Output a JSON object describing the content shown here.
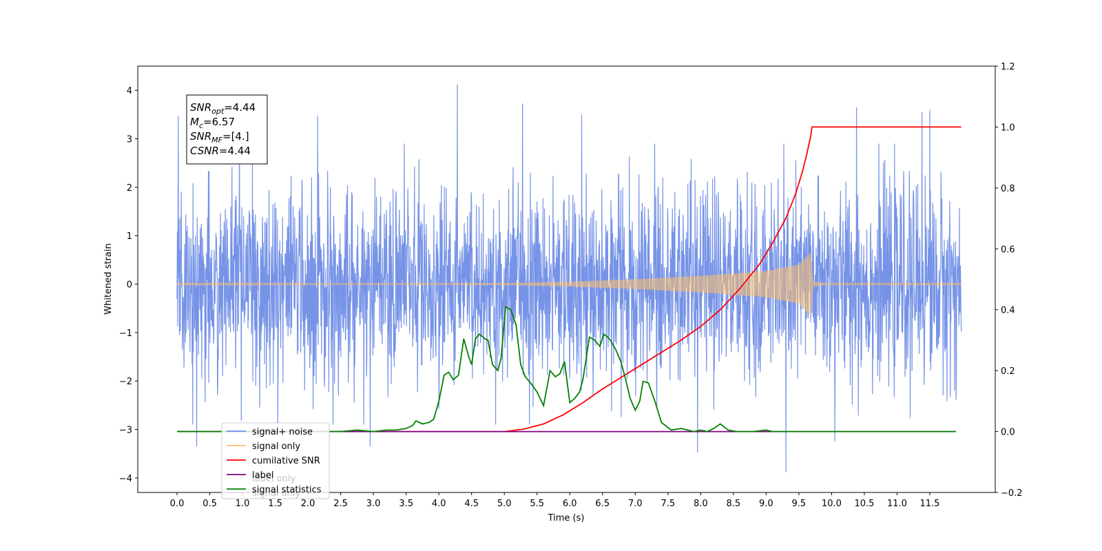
{
  "chart_data": {
    "type": "line",
    "title": "",
    "xlabel": "Time (s)",
    "ylabel": "Whitened strain",
    "xlim": [
      -0.6,
      12.5
    ],
    "xticks": [
      0.0,
      0.5,
      1.0,
      1.5,
      2.0,
      2.5,
      3.0,
      3.5,
      4.0,
      4.5,
      5.0,
      5.5,
      6.0,
      6.5,
      7.0,
      7.5,
      8.0,
      8.5,
      9.0,
      9.5,
      10.0,
      10.5,
      11.0,
      11.5
    ],
    "xtick_labels": [
      "0.0",
      "0.5",
      "1.0",
      "1.5",
      "2.0",
      "2.5",
      "3.0",
      "3.5",
      "4.0",
      "4.5",
      "5.0",
      "5.5",
      "6.0",
      "6.5",
      "7.0",
      "7.5",
      "8.0",
      "8.5",
      "9.0",
      "9.5",
      "10.0",
      "10.5",
      "11.0",
      "11.5"
    ],
    "ylim_left": [
      -4.3,
      4.5
    ],
    "yticks_left": [
      4,
      3,
      2,
      1,
      0,
      -1,
      -2,
      -3,
      -4
    ],
    "ytick_labels_left": [
      "4",
      "3",
      "2",
      "1",
      "0",
      "−1",
      "−2",
      "−3",
      "−4"
    ],
    "ylim_right": [
      -0.2,
      1.2
    ],
    "yticks_right": [
      1.2,
      1.0,
      0.8,
      0.6,
      0.4,
      0.2,
      0.0,
      -0.2
    ],
    "ytick_labels_right": [
      "1.2",
      "1.0",
      "0.8",
      "0.6",
      "0.4",
      "0.2",
      "0.0",
      "−0.2"
    ],
    "grid": false,
    "legend_position": "bottom-left",
    "annotation": [
      {
        "label": "SNR",
        "sub": "opt",
        "value": "=4.44"
      },
      {
        "label": "M",
        "sub": "c",
        "value": "=6.57"
      },
      {
        "label": "SNR",
        "sub": "MF",
        "value": "=[4.]"
      },
      {
        "label": "CSNR",
        "sub": "",
        "value": "=4.44"
      }
    ],
    "series": [
      {
        "name": "signal+ noise",
        "axis": "left",
        "color": "#6f8de6",
        "kind": "noise",
        "x_range": [
          0.0,
          11.98
        ],
        "typical_range": [
          -1.8,
          1.8
        ],
        "peaks": [
          {
            "x": 0.02,
            "y": 3.47
          },
          {
            "x": 0.3,
            "y": -3.35
          },
          {
            "x": 2.15,
            "y": 3.48
          },
          {
            "x": 2.95,
            "y": -3.35
          },
          {
            "x": 4.28,
            "y": 4.12
          },
          {
            "x": 5.28,
            "y": 3.73
          },
          {
            "x": 6.18,
            "y": 3.5
          },
          {
            "x": 7.95,
            "y": -3.48
          },
          {
            "x": 9.3,
            "y": -3.88
          },
          {
            "x": 10.05,
            "y": -3.25
          },
          {
            "x": 10.38,
            "y": 3.65
          },
          {
            "x": 11.38,
            "y": 3.55
          },
          {
            "x": 11.5,
            "y": 3.6
          }
        ]
      },
      {
        "name": "signal only",
        "axis": "left",
        "color": "#ffbf69",
        "kind": "chirp",
        "x_range": [
          0.0,
          11.98
        ],
        "merger_x": 9.7,
        "amplitude": [
          {
            "x": 0.0,
            "y": 0.01
          },
          {
            "x": 5.0,
            "y": 0.02
          },
          {
            "x": 6.0,
            "y": 0.05
          },
          {
            "x": 7.0,
            "y": 0.1
          },
          {
            "x": 8.0,
            "y": 0.17
          },
          {
            "x": 9.0,
            "y": 0.27
          },
          {
            "x": 9.5,
            "y": 0.4
          },
          {
            "x": 9.68,
            "y": 0.65
          },
          {
            "x": 9.72,
            "y": 0.05
          },
          {
            "x": 10.0,
            "y": 0.01
          },
          {
            "x": 11.98,
            "y": 0.01
          }
        ]
      },
      {
        "name": "cumilative SNR",
        "axis": "right",
        "color": "#ff0000",
        "x": [
          0.0,
          5.0,
          5.3,
          5.6,
          5.9,
          6.2,
          6.5,
          6.8,
          7.1,
          7.4,
          7.7,
          8.0,
          8.3,
          8.6,
          8.9,
          9.1,
          9.3,
          9.45,
          9.55,
          9.62,
          9.68,
          9.7,
          11.98
        ],
        "values": [
          0.0,
          0.0,
          0.008,
          0.025,
          0.055,
          0.095,
          0.14,
          0.18,
          0.22,
          0.26,
          0.3,
          0.345,
          0.4,
          0.47,
          0.55,
          0.62,
          0.7,
          0.78,
          0.85,
          0.91,
          0.97,
          1.0,
          1.0
        ]
      },
      {
        "name": "label",
        "axis": "right",
        "color": "#800080",
        "x": [
          0.0,
          11.9
        ],
        "values": [
          0.0,
          0.0
        ]
      },
      {
        "name": "signal statistics",
        "axis": "right",
        "color": "#008000",
        "x": [
          0.0,
          2.5,
          2.75,
          3.0,
          3.2,
          3.35,
          3.5,
          3.6,
          3.65,
          3.75,
          3.85,
          3.92,
          4.0,
          4.08,
          4.15,
          4.22,
          4.3,
          4.38,
          4.45,
          4.5,
          4.56,
          4.62,
          4.7,
          4.75,
          4.82,
          4.9,
          4.95,
          5.02,
          5.1,
          5.18,
          5.25,
          5.32,
          5.4,
          5.5,
          5.6,
          5.7,
          5.78,
          5.85,
          5.92,
          6.0,
          6.08,
          6.15,
          6.2,
          6.3,
          6.38,
          6.46,
          6.52,
          6.58,
          6.62,
          6.7,
          6.78,
          6.85,
          6.92,
          7.0,
          7.07,
          7.12,
          7.2,
          7.3,
          7.4,
          7.55,
          7.7,
          7.8,
          7.9,
          8.0,
          8.1,
          8.2,
          8.3,
          8.42,
          8.55,
          8.8,
          9.0,
          9.1,
          9.3,
          9.5,
          11.9
        ],
        "values": [
          0.0,
          0.0,
          0.005,
          0.0,
          0.005,
          0.005,
          0.01,
          0.02,
          0.035,
          0.025,
          0.03,
          0.04,
          0.1,
          0.185,
          0.195,
          0.17,
          0.185,
          0.305,
          0.25,
          0.22,
          0.305,
          0.32,
          0.305,
          0.3,
          0.22,
          0.2,
          0.24,
          0.41,
          0.4,
          0.35,
          0.22,
          0.18,
          0.16,
          0.13,
          0.085,
          0.2,
          0.18,
          0.19,
          0.23,
          0.095,
          0.11,
          0.13,
          0.17,
          0.31,
          0.3,
          0.28,
          0.32,
          0.31,
          0.3,
          0.27,
          0.23,
          0.175,
          0.11,
          0.07,
          0.1,
          0.165,
          0.16,
          0.1,
          0.03,
          0.005,
          0.01,
          0.005,
          0.0,
          0.005,
          0.0,
          0.01,
          0.025,
          0.005,
          0.0,
          0.0,
          0.005,
          0.0,
          0.0,
          0.0,
          0.0
        ]
      }
    ],
    "legend": [
      {
        "label": "signal+ noise",
        "color": "#6f8de6"
      },
      {
        "label": "signal only",
        "color": "#ffbf69"
      },
      {
        "label": "cumilative SNR",
        "color": "#ff0000"
      },
      {
        "label": "label",
        "color": "#800080"
      },
      {
        "label": "signal statistics",
        "color": "#008000"
      }
    ],
    "legend_ghost_text": [
      "label only",
      "signal only"
    ]
  }
}
